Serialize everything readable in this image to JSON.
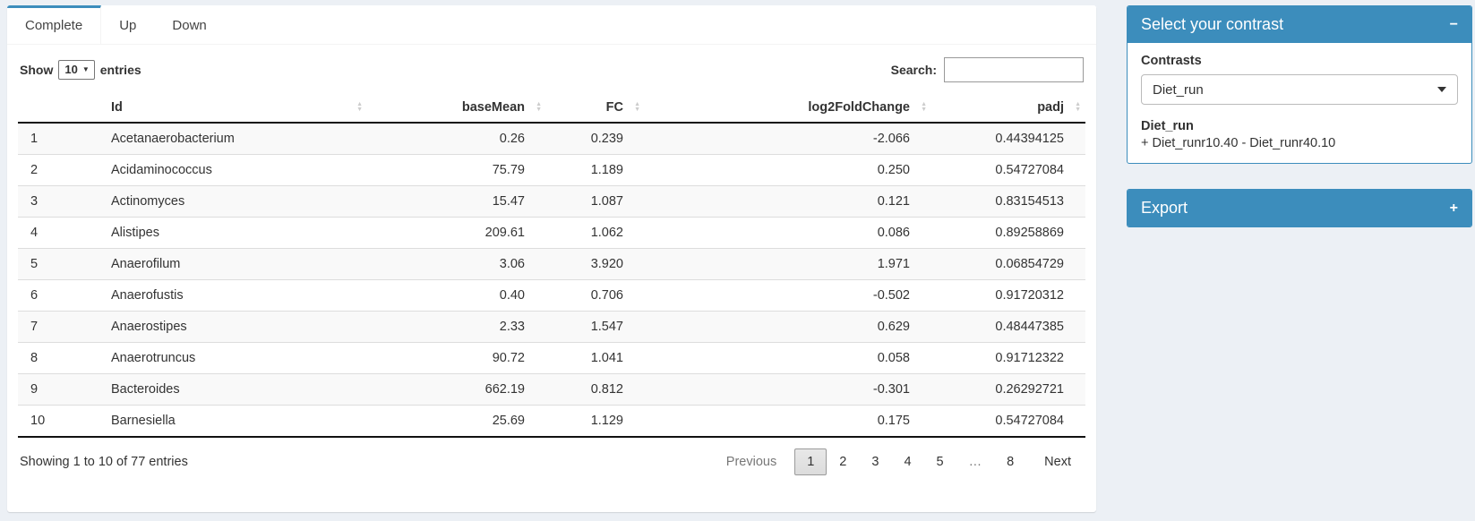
{
  "tabs": [
    {
      "label": "Complete",
      "active": true
    },
    {
      "label": "Up",
      "active": false
    },
    {
      "label": "Down",
      "active": false
    }
  ],
  "controls": {
    "show_label": "Show",
    "page_length": "10",
    "entries_label": "entries",
    "search_label": "Search:",
    "search_value": ""
  },
  "table": {
    "columns": [
      "Id",
      "baseMean",
      "FC",
      "log2FoldChange",
      "padj"
    ],
    "rows": [
      {
        "index": "1",
        "id": "Acetanaerobacterium",
        "baseMean": "0.26",
        "fc": "0.239",
        "log2FoldChange": "-2.066",
        "padj": "0.44394125"
      },
      {
        "index": "2",
        "id": "Acidaminococcus",
        "baseMean": "75.79",
        "fc": "1.189",
        "log2FoldChange": "0.250",
        "padj": "0.54727084"
      },
      {
        "index": "3",
        "id": "Actinomyces",
        "baseMean": "15.47",
        "fc": "1.087",
        "log2FoldChange": "0.121",
        "padj": "0.83154513"
      },
      {
        "index": "4",
        "id": "Alistipes",
        "baseMean": "209.61",
        "fc": "1.062",
        "log2FoldChange": "0.086",
        "padj": "0.89258869"
      },
      {
        "index": "5",
        "id": "Anaerofilum",
        "baseMean": "3.06",
        "fc": "3.920",
        "log2FoldChange": "1.971",
        "padj": "0.06854729"
      },
      {
        "index": "6",
        "id": "Anaerofustis",
        "baseMean": "0.40",
        "fc": "0.706",
        "log2FoldChange": "-0.502",
        "padj": "0.91720312"
      },
      {
        "index": "7",
        "id": "Anaerostipes",
        "baseMean": "2.33",
        "fc": "1.547",
        "log2FoldChange": "0.629",
        "padj": "0.48447385"
      },
      {
        "index": "8",
        "id": "Anaerotruncus",
        "baseMean": "90.72",
        "fc": "1.041",
        "log2FoldChange": "0.058",
        "padj": "0.91712322"
      },
      {
        "index": "9",
        "id": "Bacteroides",
        "baseMean": "662.19",
        "fc": "0.812",
        "log2FoldChange": "-0.301",
        "padj": "0.26292721"
      },
      {
        "index": "10",
        "id": "Barnesiella",
        "baseMean": "25.69",
        "fc": "1.129",
        "log2FoldChange": "0.175",
        "padj": "0.54727084"
      }
    ]
  },
  "footer": {
    "info": "Showing 1 to 10 of 77 entries",
    "pagination": {
      "previous": "Previous",
      "pages": [
        "1",
        "2",
        "3",
        "4",
        "5",
        "…",
        "8"
      ],
      "current": "1",
      "next": "Next"
    }
  },
  "sidebar": {
    "contrast_box": {
      "title": "Select your contrast",
      "collapse_icon": "−",
      "contrasts_label": "Contrasts",
      "selected_contrast": "Diet_run",
      "contrast_name": "Diet_run",
      "contrast_formula": "+ Diet_runr10.40 - Diet_runr40.10"
    },
    "export_box": {
      "title": "Export",
      "expand_icon": "+"
    }
  },
  "colors": {
    "primary": "#3c8dbc",
    "page_background": "#ecf0f5"
  }
}
